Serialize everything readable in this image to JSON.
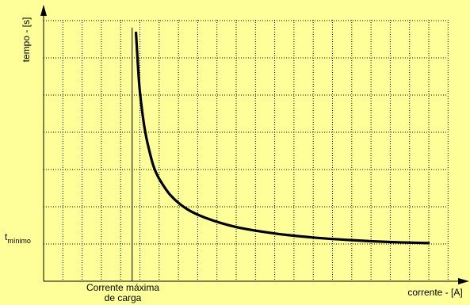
{
  "chart_data": {
    "type": "line",
    "title": "",
    "xlabel": "corrente - [A]",
    "ylabel": "tempo - [s]",
    "xlim": [
      0,
      10.5
    ],
    "ylim": [
      0,
      7
    ],
    "grid": true,
    "grid_style": "dotted",
    "x_marker": {
      "label_line1": "Corrente máxima",
      "label_line2": "de carga",
      "value": 2.3
    },
    "y_marker": {
      "label_main": "t",
      "label_sub": "mínimo",
      "value": 1
    },
    "series": [
      {
        "x": [
          2.4,
          2.45,
          2.5,
          2.6,
          2.7,
          2.85,
          3.0,
          3.3,
          3.7,
          4.2,
          5.0,
          6.0,
          7.0,
          8.0,
          9.0,
          10.0
        ],
        "y": [
          6.65,
          5.8,
          5.1,
          4.25,
          3.7,
          3.1,
          2.75,
          2.3,
          1.95,
          1.7,
          1.45,
          1.28,
          1.17,
          1.1,
          1.05,
          1.02
        ]
      }
    ],
    "colors": {
      "background": "#ffff99",
      "curve": "#000000",
      "grid": "#000000",
      "axis": "#000000"
    }
  }
}
